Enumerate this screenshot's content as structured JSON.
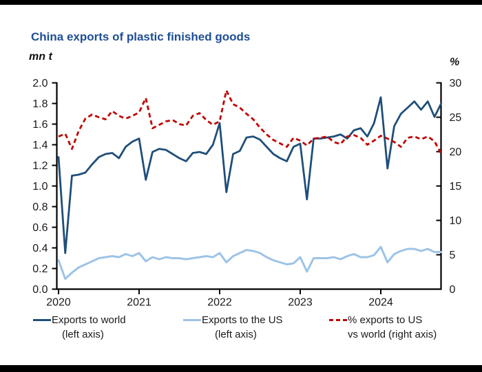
{
  "title": "China exports of plastic finished goods",
  "left_axis": {
    "unit": "mn t",
    "ticks": [
      "2.0",
      "1.8",
      "1.6",
      "1.4",
      "1.2",
      "1.0",
      "0.8",
      "0.6",
      "0.4",
      "0.2",
      "0.0"
    ]
  },
  "right_axis": {
    "unit": "%",
    "ticks": [
      "30",
      "25",
      "20",
      "15",
      "10",
      "5",
      "0"
    ]
  },
  "x_axis": {
    "ticks": [
      "2020",
      "2021",
      "2022",
      "2023",
      "2024"
    ]
  },
  "legend": [
    {
      "line1": "Exports to world",
      "line2": "(left axis)",
      "color": "#1f4e79",
      "style": "solid"
    },
    {
      "line1": "Exports to the US",
      "line2": "(left axis)",
      "color": "#9dc3e6",
      "style": "solid"
    },
    {
      "line1": "% exports to US",
      "line2": "vs world (right axis)",
      "color": "#c00000",
      "style": "dashed"
    }
  ],
  "colors": {
    "title": "#1f4e94",
    "axis": "#000000",
    "tick_text": "#1a1a1a",
    "world_line": "#1f4e79",
    "us_line": "#9dc3e6",
    "pct_line": "#c00000"
  },
  "chart_data": {
    "type": "line",
    "title": "China exports of plastic finished goods",
    "x_unit": "month",
    "x_start": "2020-01",
    "x_end": "2024-10",
    "x_tick_labels": [
      "2020",
      "2021",
      "2022",
      "2023",
      "2024"
    ],
    "left_ylabel": "mn t",
    "right_ylabel": "%",
    "left_ylim": [
      0,
      2.0
    ],
    "right_ylim": [
      0,
      30
    ],
    "grid": false,
    "legend_position": "bottom",
    "series": [
      {
        "name": "Exports to world (left axis)",
        "axis": "left",
        "style": "solid",
        "color": "#1f4e79",
        "values": [
          1.28,
          0.35,
          1.1,
          1.11,
          1.13,
          1.21,
          1.28,
          1.31,
          1.32,
          1.27,
          1.38,
          1.43,
          1.46,
          1.06,
          1.33,
          1.36,
          1.35,
          1.31,
          1.27,
          1.24,
          1.32,
          1.33,
          1.31,
          1.4,
          1.61,
          0.94,
          1.31,
          1.34,
          1.47,
          1.48,
          1.45,
          1.38,
          1.31,
          1.27,
          1.24,
          1.38,
          1.41,
          0.87,
          1.46,
          1.46,
          1.47,
          1.48,
          1.5,
          1.46,
          1.54,
          1.56,
          1.48,
          1.61,
          1.86,
          1.17,
          1.58,
          1.7,
          1.76,
          1.82,
          1.74,
          1.82,
          1.67,
          1.8
        ]
      },
      {
        "name": "Exports to the US (left axis)",
        "axis": "left",
        "style": "solid",
        "color": "#9dc3e6",
        "values": [
          0.28,
          0.1,
          0.16,
          0.21,
          0.24,
          0.27,
          0.3,
          0.31,
          0.32,
          0.31,
          0.34,
          0.32,
          0.35,
          0.27,
          0.31,
          0.29,
          0.31,
          0.3,
          0.3,
          0.29,
          0.3,
          0.31,
          0.32,
          0.31,
          0.35,
          0.26,
          0.32,
          0.35,
          0.38,
          0.37,
          0.35,
          0.31,
          0.28,
          0.26,
          0.24,
          0.25,
          0.31,
          0.17,
          0.3,
          0.3,
          0.3,
          0.31,
          0.29,
          0.32,
          0.34,
          0.31,
          0.31,
          0.33,
          0.41,
          0.26,
          0.34,
          0.37,
          0.39,
          0.39,
          0.37,
          0.39,
          0.36,
          0.36
        ]
      },
      {
        "name": "% exports to US vs world (right axis)",
        "axis": "right",
        "style": "dashed",
        "color": "#c00000",
        "values": [
          22.2,
          22.6,
          20.4,
          23.0,
          24.8,
          25.4,
          25.0,
          24.7,
          25.9,
          25.2,
          24.8,
          25.2,
          25.7,
          27.8,
          23.4,
          23.9,
          24.4,
          24.6,
          24.0,
          23.8,
          25.2,
          25.6,
          24.6,
          23.9,
          24.4,
          28.9,
          26.9,
          26.4,
          25.5,
          24.7,
          23.5,
          22.5,
          21.7,
          21.2,
          20.7,
          22.0,
          21.6,
          20.9,
          21.9,
          22.0,
          22.2,
          21.4,
          21.1,
          22.2,
          22.4,
          22.0,
          21.0,
          21.6,
          22.3,
          21.9,
          21.4,
          20.7,
          22.0,
          22.2,
          21.8,
          22.2,
          21.5,
          19.7
        ]
      }
    ]
  }
}
